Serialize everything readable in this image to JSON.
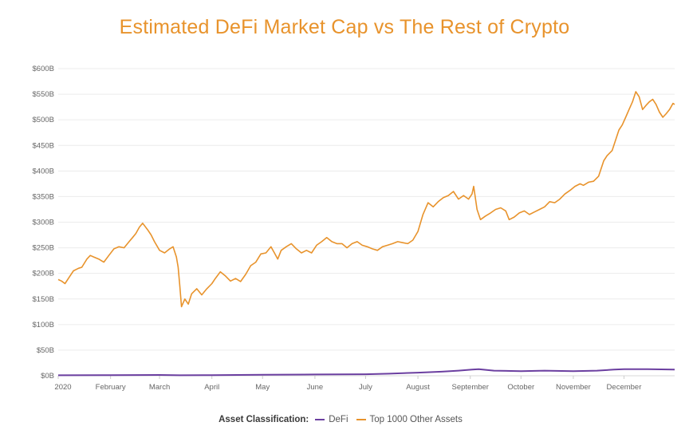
{
  "chart_data": {
    "type": "line",
    "title": "Estimated DeFi Market Cap vs The Rest of Crypto",
    "xlabel": "",
    "ylabel": "",
    "ylim": [
      0,
      600
    ],
    "y_ticks": [
      "$0B",
      "$50B",
      "$100B",
      "$150B",
      "$200B",
      "$250B",
      "$300B",
      "$350B",
      "$400B",
      "$450B",
      "$500B",
      "$550B",
      "$600B"
    ],
    "y_tick_values": [
      0,
      50,
      100,
      150,
      200,
      250,
      300,
      350,
      400,
      450,
      500,
      550,
      600
    ],
    "x_ticks": [
      "2020",
      "February",
      "March",
      "April",
      "May",
      "June",
      "July",
      "August",
      "September",
      "October",
      "November",
      "December"
    ],
    "x_tick_dates": [
      "2020-01-01",
      "2020-02-01",
      "2020-03-01",
      "2020-04-01",
      "2020-05-01",
      "2020-06-01",
      "2020-07-01",
      "2020-08-01",
      "2020-09-01",
      "2020-10-01",
      "2020-11-01",
      "2020-12-01"
    ],
    "xlim": [
      "2020-01-01",
      "2020-12-31"
    ],
    "grid": "horizontal",
    "legend_placement": "bottom-center",
    "legend_title": "Asset Classification:",
    "series": [
      {
        "name": "DeFi",
        "color": "#6b3fa0",
        "x": [
          "2020-01-01",
          "2020-02-01",
          "2020-03-01",
          "2020-03-13",
          "2020-04-01",
          "2020-05-01",
          "2020-06-01",
          "2020-07-01",
          "2020-07-15",
          "2020-08-01",
          "2020-08-15",
          "2020-08-25",
          "2020-09-02",
          "2020-09-06",
          "2020-09-15",
          "2020-10-01",
          "2020-10-15",
          "2020-11-01",
          "2020-11-15",
          "2020-11-25",
          "2020-12-01",
          "2020-12-15",
          "2020-12-31"
        ],
        "values": [
          1,
          1.2,
          1.5,
          1,
          1.2,
          1.8,
          2.5,
          3,
          4,
          6,
          8,
          10,
          12,
          13,
          10,
          9,
          10,
          9,
          10,
          12,
          13,
          13,
          12
        ]
      },
      {
        "name": "Top 1000 Other Assets",
        "color": "#e8932c",
        "x": [
          "2020-01-01",
          "2020-01-03",
          "2020-01-05",
          "2020-01-08",
          "2020-01-10",
          "2020-01-13",
          "2020-01-15",
          "2020-01-18",
          "2020-01-20",
          "2020-01-22",
          "2020-01-25",
          "2020-01-28",
          "2020-01-31",
          "2020-02-03",
          "2020-02-06",
          "2020-02-09",
          "2020-02-12",
          "2020-02-14",
          "2020-02-16",
          "2020-02-18",
          "2020-02-20",
          "2020-02-23",
          "2020-02-25",
          "2020-02-27",
          "2020-03-01",
          "2020-03-04",
          "2020-03-07",
          "2020-03-09",
          "2020-03-11",
          "2020-03-12",
          "2020-03-13",
          "2020-03-14",
          "2020-03-16",
          "2020-03-18",
          "2020-03-20",
          "2020-03-23",
          "2020-03-26",
          "2020-03-29",
          "2020-04-01",
          "2020-04-03",
          "2020-04-06",
          "2020-04-09",
          "2020-04-12",
          "2020-04-15",
          "2020-04-18",
          "2020-04-21",
          "2020-04-24",
          "2020-04-27",
          "2020-04-30",
          "2020-05-03",
          "2020-05-06",
          "2020-05-08",
          "2020-05-10",
          "2020-05-12",
          "2020-05-15",
          "2020-05-18",
          "2020-05-21",
          "2020-05-24",
          "2020-05-27",
          "2020-05-30",
          "2020-06-02",
          "2020-06-05",
          "2020-06-08",
          "2020-06-11",
          "2020-06-14",
          "2020-06-17",
          "2020-06-20",
          "2020-06-23",
          "2020-06-26",
          "2020-06-29",
          "2020-07-02",
          "2020-07-05",
          "2020-07-08",
          "2020-07-11",
          "2020-07-14",
          "2020-07-17",
          "2020-07-20",
          "2020-07-23",
          "2020-07-26",
          "2020-07-29",
          "2020-08-01",
          "2020-08-04",
          "2020-08-07",
          "2020-08-10",
          "2020-08-13",
          "2020-08-16",
          "2020-08-19",
          "2020-08-22",
          "2020-08-25",
          "2020-08-28",
          "2020-08-31",
          "2020-09-02",
          "2020-09-03",
          "2020-09-05",
          "2020-09-07",
          "2020-09-10",
          "2020-09-13",
          "2020-09-16",
          "2020-09-19",
          "2020-09-22",
          "2020-09-24",
          "2020-09-27",
          "2020-09-30",
          "2020-10-03",
          "2020-10-06",
          "2020-10-09",
          "2020-10-12",
          "2020-10-15",
          "2020-10-18",
          "2020-10-21",
          "2020-10-24",
          "2020-10-27",
          "2020-10-30",
          "2020-11-02",
          "2020-11-05",
          "2020-11-07",
          "2020-11-10",
          "2020-11-13",
          "2020-11-16",
          "2020-11-19",
          "2020-11-21",
          "2020-11-24",
          "2020-11-26",
          "2020-11-28",
          "2020-11-30",
          "2020-12-02",
          "2020-12-04",
          "2020-12-06",
          "2020-12-08",
          "2020-12-10",
          "2020-12-12",
          "2020-12-14",
          "2020-12-16",
          "2020-12-18",
          "2020-12-20",
          "2020-12-22",
          "2020-12-24",
          "2020-12-26",
          "2020-12-28",
          "2020-12-30",
          "2020-12-31"
        ],
        "values": [
          188,
          185,
          180,
          195,
          205,
          210,
          212,
          228,
          235,
          232,
          228,
          222,
          235,
          248,
          252,
          250,
          262,
          270,
          278,
          290,
          298,
          285,
          275,
          262,
          245,
          240,
          248,
          252,
          232,
          212,
          175,
          135,
          150,
          140,
          160,
          170,
          158,
          170,
          180,
          190,
          203,
          195,
          185,
          190,
          184,
          198,
          215,
          222,
          238,
          240,
          252,
          240,
          228,
          245,
          252,
          258,
          248,
          240,
          245,
          240,
          255,
          262,
          270,
          262,
          258,
          258,
          250,
          258,
          262,
          255,
          252,
          248,
          245,
          252,
          255,
          258,
          262,
          260,
          258,
          265,
          282,
          315,
          338,
          330,
          340,
          348,
          352,
          360,
          345,
          352,
          345,
          355,
          370,
          325,
          305,
          312,
          318,
          325,
          328,
          322,
          305,
          310,
          318,
          322,
          315,
          320,
          325,
          330,
          340,
          338,
          345,
          355,
          362,
          370,
          375,
          372,
          378,
          380,
          390,
          420,
          430,
          440,
          460,
          480,
          490,
          505,
          520,
          535,
          555,
          545,
          520,
          528,
          535,
          540,
          530,
          515,
          505,
          512,
          520,
          532,
          530
        ]
      }
    ]
  }
}
